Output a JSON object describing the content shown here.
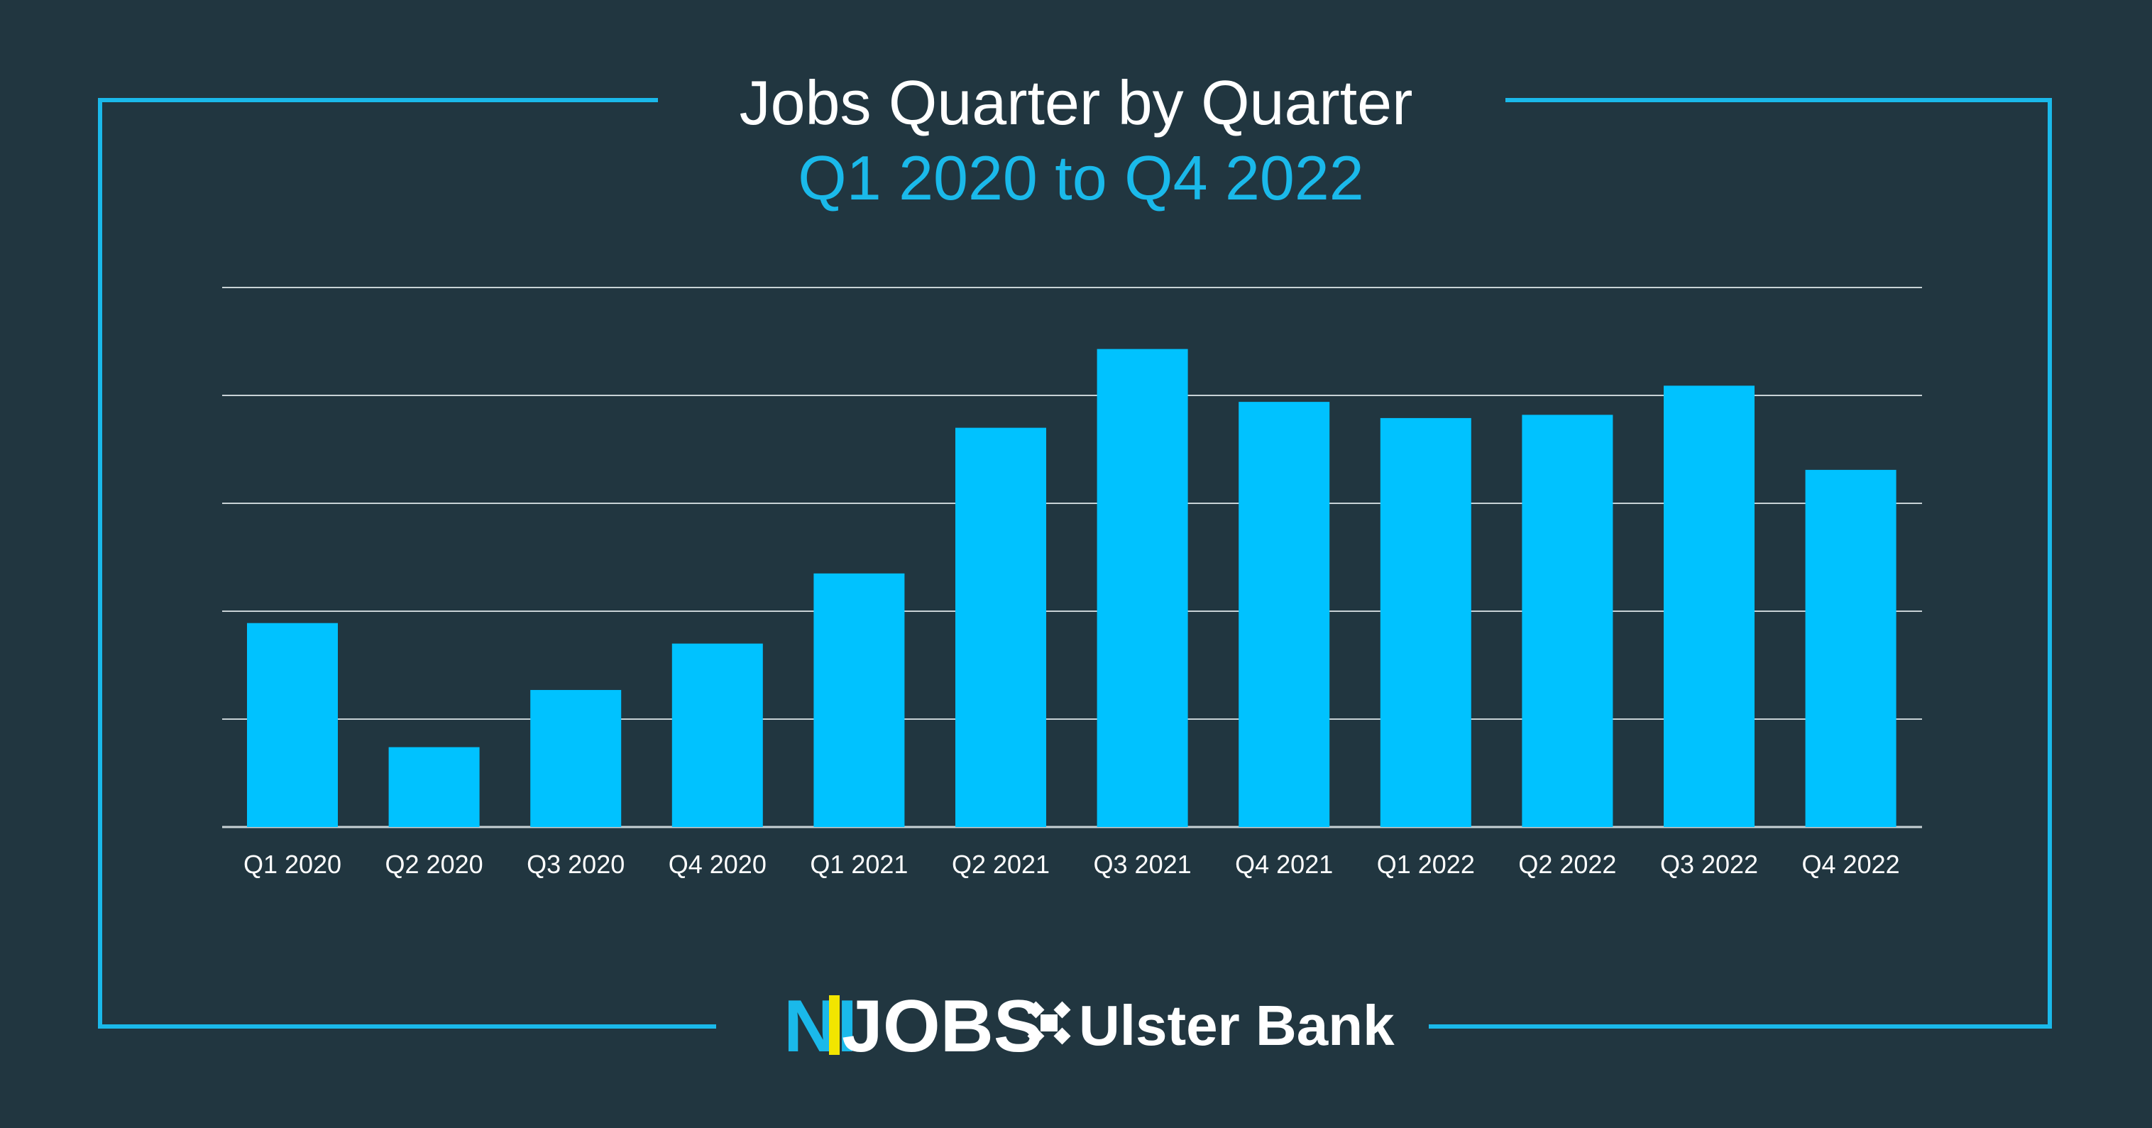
{
  "colors": {
    "background": "#213640",
    "accent": "#1ab9ea",
    "bar": "#00c2ff",
    "gridline": "#c8d2d6",
    "text": "#ffffff",
    "logo_divider": "#f2e500"
  },
  "chart_data": {
    "type": "bar",
    "title": "Jobs Quarter by Quarter",
    "subtitle": "Q1 2020 to Q4 2022",
    "categories": [
      "Q1 2020",
      "Q2 2020",
      "Q3 2020",
      "Q4 2020",
      "Q1 2021",
      "Q2 2021",
      "Q3 2021",
      "Q4 2021",
      "Q1 2022",
      "Q2 2022",
      "Q3 2022",
      "Q4 2022"
    ],
    "values": [
      1.89,
      0.74,
      1.27,
      1.7,
      2.35,
      3.7,
      4.43,
      3.94,
      3.79,
      3.82,
      4.09,
      3.31
    ],
    "ylim": [
      0,
      5
    ],
    "gridlines": [
      0,
      1,
      2,
      3,
      4,
      5
    ],
    "y_tick_labels_shown": false,
    "grid": true,
    "legend": "none"
  },
  "logos": {
    "ni": "NI",
    "jobs": "JOBS",
    "bank_emblem": "ulster-bank-emblem-icon",
    "bank": "Ulster Bank"
  }
}
